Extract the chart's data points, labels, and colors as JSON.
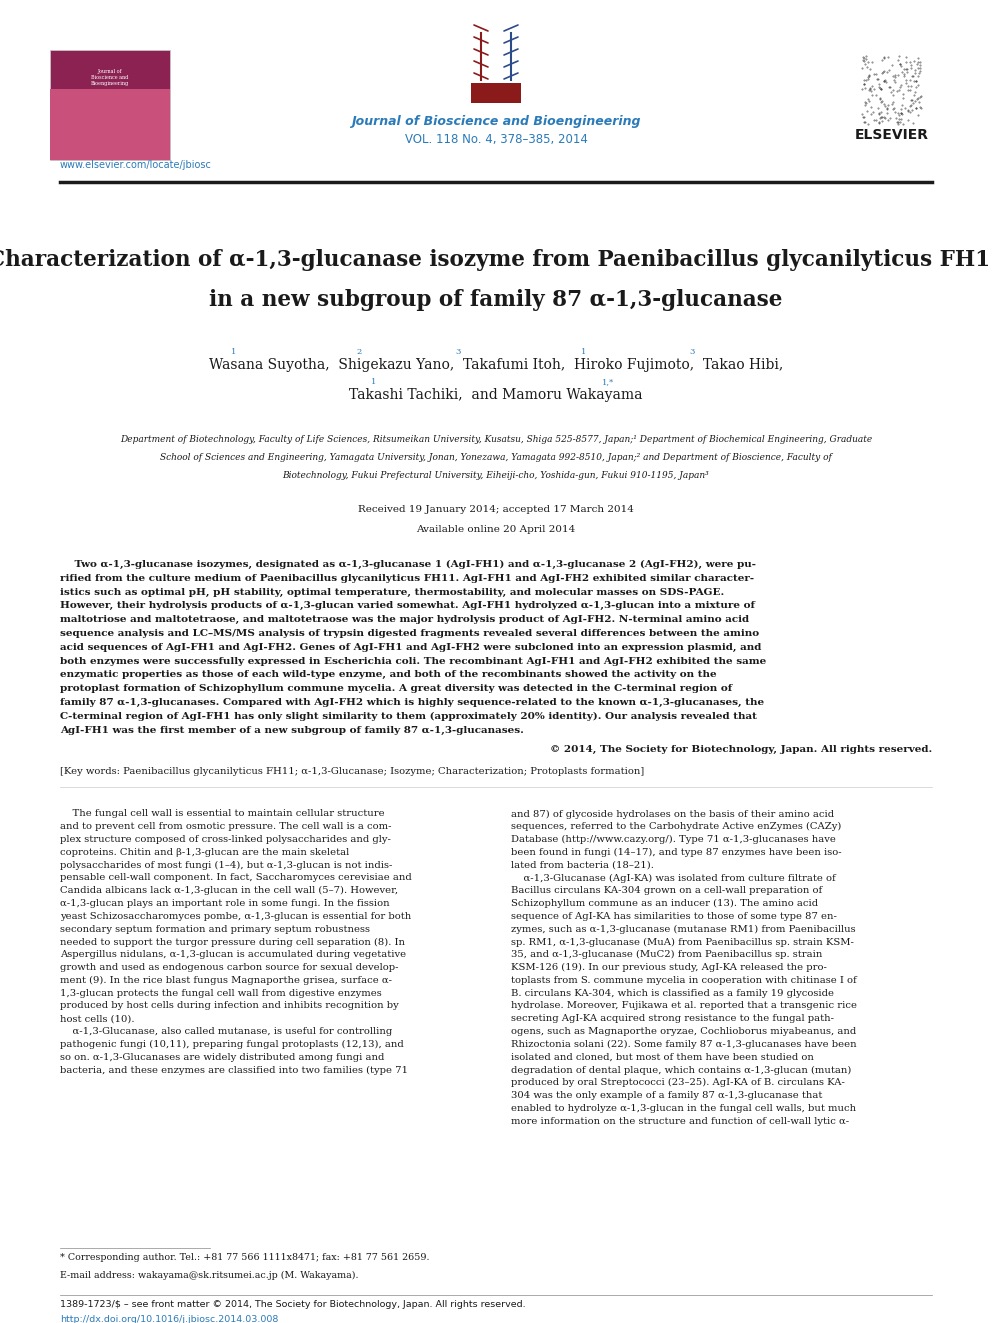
{
  "page_width": 9.92,
  "page_height": 13.23,
  "background_color": "#ffffff",
  "journal_name": "Journal of Bioscience and Bioengineering",
  "journal_volume": "VOL. 118 No. 4, 378–385, 2014",
  "journal_color": "#2b7bb9",
  "elsevier_text": "ELSEVIER",
  "website": "www.elsevier.com/locate/jbiosc",
  "website_color": "#2b7bb9",
  "title_color": "#1a1a1a",
  "authors_color": "#1a1a1a",
  "affiliation_color": "#1a1a1a",
  "received": "Received 19 January 2014; accepted 17 March 2014",
  "available": "Available online 20 April 2014",
  "dates_color": "#1a1a1a",
  "copyright": "© 2014, The Society for Biotechnology, Japan. All rights reserved.",
  "keywords": "[Key words: Paenibacillus glycanilyticus FH11; α-1,3-Glucanase; Isozyme; Characterization; Protoplasts formation]",
  "footnote_star": "* Corresponding author. Tel.: +81 77 566 1111x8471; fax: +81 77 561 2659.",
  "footnote_email": "E-mail address: wakayama@sk.ritsumei.ac.jp (M. Wakayama).",
  "footer_left": "1389-1723/$ – see front matter © 2014, The Society for Biotechnology, Japan. All rights reserved.",
  "footer_doi": "http://dx.doi.org/10.1016/j.jbiosc.2014.03.008",
  "footer_doi_color": "#2b7bb9",
  "link_color": "#2b7bb9",
  "body_text_color": "#1a1a1a",
  "header_line_color": "#1a1a1a",
  "superscript_color": "#2b7bb9",
  "abstract_lines": [
    "    Two α-1,3-glucanase isozymes, designated as α-1,3-glucanase 1 (AgI-FH1) and α-1,3-glucanase 2 (AgI-FH2), were pu-",
    "rified from the culture medium of Paenibacillus glycanilyticus FH11. AgI-FH1 and AgI-FH2 exhibited similar character-",
    "istics such as optimal pH, pH stability, optimal temperature, thermostability, and molecular masses on SDS-PAGE.",
    "However, their hydrolysis products of α-1,3-glucan varied somewhat. AgI-FH1 hydrolyzed α-1,3-glucan into a mixture of",
    "maltotriose and maltotetraose, and maltotetraose was the major hydrolysis product of AgI-FH2. N-terminal amino acid",
    "sequence analysis and LC–MS/MS analysis of trypsin digested fragments revealed several differences between the amino",
    "acid sequences of AgI-FH1 and AgI-FH2. Genes of AgI-FH1 and AgI-FH2 were subcloned into an expression plasmid, and",
    "both enzymes were successfully expressed in Escherichia coli. The recombinant AgI-FH1 and AgI-FH2 exhibited the same",
    "enzymatic properties as those of each wild-type enzyme, and both of the recombinants showed the activity on the",
    "protoplast formation of Schizophyllum commune mycelia. A great diversity was detected in the C-terminal region of",
    "family 87 α-1,3-glucanases. Compared with AgI-FH2 which is highly sequence-related to the known α-1,3-glucanases, the",
    "C-terminal region of AgI-FH1 has only slight similarity to them (approximately 20% identity). Our analysis revealed that",
    "AgI-FH1 was the first member of a new subgroup of family 87 α-1,3-glucanases."
  ],
  "col1_lines": [
    "    The fungal cell wall is essential to maintain cellular structure",
    "and to prevent cell from osmotic pressure. The cell wall is a com-",
    "plex structure composed of cross-linked polysaccharides and gly-",
    "coproteins. Chitin and β-1,3-glucan are the main skeletal",
    "polysaccharides of most fungi (1–4), but α-1,3-glucan is not indis-",
    "pensable cell-wall component. In fact, Saccharomyces cerevisiae and",
    "Candida albicans lack α-1,3-glucan in the cell wall (5–7). However,",
    "α-1,3-glucan plays an important role in some fungi. In the fission",
    "yeast Schizosaccharomyces pombe, α-1,3-glucan is essential for both",
    "secondary septum formation and primary septum robustness",
    "needed to support the turgor pressure during cell separation (8). In",
    "Aspergillus nidulans, α-1,3-glucan is accumulated during vegetative",
    "growth and used as endogenous carbon source for sexual develop-",
    "ment (9). In the rice blast fungus Magnaporthe grisea, surface α-",
    "1,3-glucan protects the fungal cell wall from digestive enzymes",
    "produced by host cells during infection and inhibits recognition by",
    "host cells (10).",
    "    α-1,3-Glucanase, also called mutanase, is useful for controlling",
    "pathogenic fungi (10,11), preparing fungal protoplasts (12,13), and",
    "so on. α-1,3-Glucanases are widely distributed among fungi and",
    "bacteria, and these enzymes are classified into two families (type 71"
  ],
  "col2_lines": [
    "and 87) of glycoside hydrolases on the basis of their amino acid",
    "sequences, referred to the Carbohydrate Active enZymes (CAZy)",
    "Database (http://www.cazy.org/). Type 71 α-1,3-glucanases have",
    "been found in fungi (14–17), and type 87 enzymes have been iso-",
    "lated from bacteria (18–21).",
    "    α-1,3-Glucanase (AgI-KA) was isolated from culture filtrate of",
    "Bacillus circulans KA-304 grown on a cell-wall preparation of",
    "Schizophyllum commune as an inducer (13). The amino acid",
    "sequence of AgI-KA has similarities to those of some type 87 en-",
    "zymes, such as α-1,3-glucanase (mutanase RM1) from Paenibacillus",
    "sp. RM1, α-1,3-glucanase (MuA) from Paenibacillus sp. strain KSM-",
    "35, and α-1,3-glucanase (MuC2) from Paenibacillus sp. strain",
    "KSM-126 (19). In our previous study, AgI-KA released the pro-",
    "toplasts from S. commune mycelia in cooperation with chitinase I of",
    "B. circulans KA-304, which is classified as a family 19 glycoside",
    "hydrolase. Moreover, Fujikawa et al. reported that a transgenic rice",
    "secreting AgI-KA acquired strong resistance to the fungal path-",
    "ogens, such as Magnaporthe oryzae, Cochlioborus miyabeanus, and",
    "Rhizoctonia solani (22). Some family 87 α-1,3-glucanases have been",
    "isolated and cloned, but most of them have been studied on",
    "degradation of dental plaque, which contains α-1,3-glucan (mutan)",
    "produced by oral Streptococci (23–25). AgI-KA of B. circulans KA-",
    "304 was the only example of a family 87 α-1,3-glucanase that",
    "enabled to hydrolyze α-1,3-glucan in the fungal cell walls, but much",
    "more information on the structure and function of cell-wall lytic α-"
  ]
}
